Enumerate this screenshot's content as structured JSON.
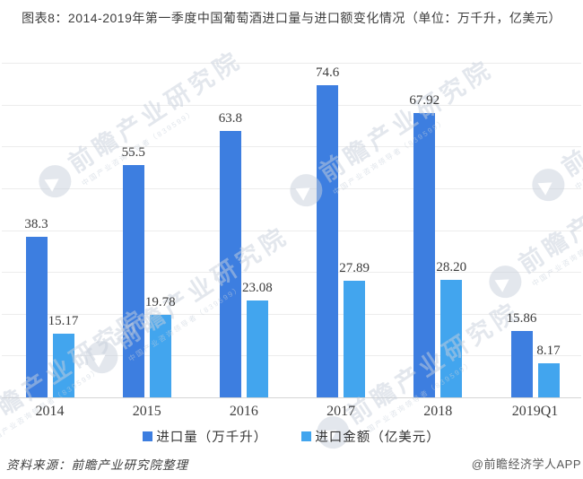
{
  "title": "图表8：2014-2019年第一季度中国葡萄酒进口量与进口额变化情况（单位：万千升，亿美元）",
  "chart_data": {
    "type": "bar",
    "categories": [
      "2014",
      "2015",
      "2016",
      "2017",
      "2018",
      "2019Q1"
    ],
    "series": [
      {
        "name": "进口量（万千升）",
        "key": "import-volume",
        "color": "#3d7ee0",
        "values": [
          38.3,
          55.5,
          63.8,
          74.6,
          67.92,
          15.86
        ],
        "labels": [
          "38.3",
          "55.5",
          "63.8",
          "74.6",
          "67.92",
          "15.86"
        ]
      },
      {
        "name": "进口金额（亿美元）",
        "key": "import-value",
        "color": "#42a5ee",
        "values": [
          15.17,
          19.78,
          23.08,
          27.89,
          28.2,
          8.17
        ],
        "labels": [
          "15.17",
          "19.78",
          "23.08",
          "27.89",
          "28.20",
          "8.17"
        ]
      }
    ],
    "ylim": [
      0,
      80
    ],
    "grid_step": 10,
    "grid": true,
    "y_axis_labels_shown": false,
    "value_labels": true,
    "legend_position": "bottom",
    "title": "图表8：2014-2019年第一季度中国葡萄酒进口量与进口额变化情况（单位：万千升，亿美元）"
  },
  "legend": {
    "items": [
      {
        "label": "进口量（万千升）",
        "color": "#3d7ee0"
      },
      {
        "label": "进口金额（亿美元）",
        "color": "#42a5ee"
      }
    ]
  },
  "footer": {
    "source": "资料来源：前瞻产业研究院整理",
    "credit": "@前瞻经济学人APP"
  },
  "watermark": {
    "text": "前瞻产业研究院",
    "subtext": "中国产业咨询领导者（839599）"
  },
  "colors": {
    "bar_dark_blue": "#3d7ee0",
    "bar_light_blue": "#42a5ee",
    "gridline": "#ececec",
    "axis_line": "#d5d5d5",
    "title_text": "#3c3c3c",
    "watermark": "#c7cfdb"
  }
}
